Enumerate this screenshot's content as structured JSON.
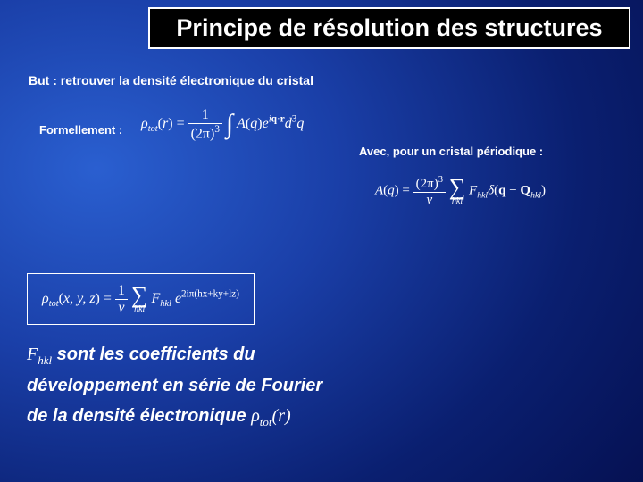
{
  "title": "Principe de résolution des structures",
  "goal": "But : retrouver la densité électronique du cristal",
  "formLabel": "Formellement :",
  "withLabel": "Avec, pour un cristal périodique :",
  "eq1": {
    "lhs_sym": "ρ",
    "lhs_sub": "tot",
    "lhs_arg": "r",
    "fracNum": "1",
    "fracDen_base": "(2π)",
    "fracDen_exp": "3",
    "A": "A",
    "Aq": "q",
    "exp_e": "e",
    "exp_i": "i",
    "exp_q": "q",
    "exp_dot": "·",
    "exp_r": "r",
    "d": "d",
    "dexp": "3",
    "dvar": "q"
  },
  "eq2": {
    "A": "A",
    "Aq": "q",
    "fracNum_base": "(2π)",
    "fracNum_exp": "3",
    "fracDen": "v",
    "sumSub": "hkl",
    "F": "F",
    "Fsub": "hkl",
    "delta": "δ",
    "dq": "q",
    "minus": " − ",
    "Q": "Q",
    "Qsub": "hkl"
  },
  "eq3": {
    "lhs_sym": "ρ",
    "lhs_sub": "tot",
    "lhs_args": "x, y, z",
    "fracNum": "1",
    "fracDen": "v",
    "sumSub": "hkl",
    "F": "F",
    "Fsub": "hkl",
    "exp_e": "e",
    "exp_body": "2iπ(hx+ky+lz)"
  },
  "fourier": {
    "F": "F",
    "Fsub": "hkl",
    "l1": " sont les coefficients du",
    "l2": "développement en série de Fourier",
    "l3a": "de la densité électronique ",
    "rho": "ρ",
    "rhosub": "tot",
    "rhoarg": "r"
  }
}
